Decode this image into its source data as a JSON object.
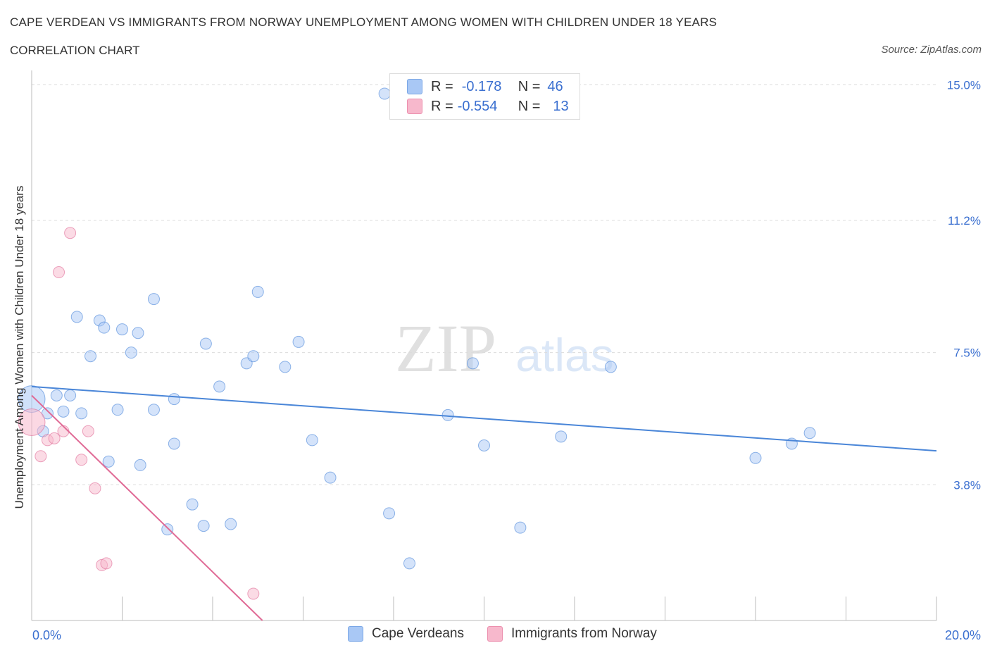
{
  "header": {
    "title": "CAPE VERDEAN VS IMMIGRANTS FROM NORWAY UNEMPLOYMENT AMONG WOMEN WITH CHILDREN UNDER 18 YEARS",
    "subtitle": "CORRELATION CHART",
    "source": "Source: ZipAtlas.com"
  },
  "watermark": {
    "zip": "ZIP",
    "atlas": "atlas"
  },
  "legend": {
    "rows": [
      {
        "r_label": "R =",
        "r_value": "-0.178",
        "n_label": "N =",
        "n_value": "46",
        "color": "#a9c8f5"
      },
      {
        "r_label": "R =",
        "r_value": "-0.554",
        "n_label": "N =",
        "n_value": "13",
        "color": "#f7b8cc"
      }
    ]
  },
  "bottom_legend": {
    "items": [
      {
        "label": "Cape Verdeans",
        "color": "#a9c8f5"
      },
      {
        "label": "Immigrants from Norway",
        "color": "#f7b8cc"
      }
    ]
  },
  "chart_data": {
    "type": "scatter",
    "title": "CAPE VERDEAN VS IMMIGRANTS FROM NORWAY UNEMPLOYMENT AMONG WOMEN WITH CHILDREN UNDER 18 YEARS",
    "ylabel": "Unemployment Among Women with Children Under 18 years",
    "xlabel": "",
    "xlim": [
      0,
      20
    ],
    "ylim": [
      0,
      15.4
    ],
    "x_ticks": [
      "0.0%",
      "20.0%"
    ],
    "y_ticks": [
      {
        "value": 3.8,
        "label": "3.8%"
      },
      {
        "value": 7.5,
        "label": "7.5%"
      },
      {
        "value": 11.2,
        "label": "11.2%"
      },
      {
        "value": 15.0,
        "label": "15.0%"
      }
    ],
    "grid": "horizontal dashed",
    "series": [
      {
        "name": "Cape Verdeans",
        "color": "#4a86d8",
        "fill": "#a9c8f5",
        "points": [
          [
            0.0,
            6.2
          ],
          [
            0.25,
            5.3
          ],
          [
            0.35,
            5.8
          ],
          [
            0.55,
            6.3
          ],
          [
            0.7,
            5.85
          ],
          [
            0.85,
            6.3
          ],
          [
            1.0,
            8.5
          ],
          [
            1.1,
            5.8
          ],
          [
            1.3,
            7.4
          ],
          [
            1.5,
            8.4
          ],
          [
            1.6,
            8.2
          ],
          [
            1.7,
            4.45
          ],
          [
            1.9,
            5.9
          ],
          [
            2.0,
            8.15
          ],
          [
            2.2,
            7.5
          ],
          [
            2.35,
            8.05
          ],
          [
            2.4,
            4.35
          ],
          [
            2.7,
            5.9
          ],
          [
            2.7,
            9.0
          ],
          [
            3.0,
            2.55
          ],
          [
            3.15,
            6.2
          ],
          [
            3.15,
            4.95
          ],
          [
            3.55,
            3.25
          ],
          [
            3.8,
            2.65
          ],
          [
            3.85,
            7.75
          ],
          [
            4.15,
            6.55
          ],
          [
            4.4,
            2.7
          ],
          [
            4.75,
            7.2
          ],
          [
            4.9,
            7.4
          ],
          [
            5.0,
            9.2
          ],
          [
            5.6,
            7.1
          ],
          [
            5.9,
            7.8
          ],
          [
            6.2,
            5.05
          ],
          [
            6.6,
            4.0
          ],
          [
            7.8,
            14.75
          ],
          [
            7.9,
            3.0
          ],
          [
            8.35,
            1.6
          ],
          [
            9.2,
            5.75
          ],
          [
            9.75,
            7.2
          ],
          [
            10.0,
            4.9
          ],
          [
            10.8,
            2.6
          ],
          [
            11.7,
            5.15
          ],
          [
            12.8,
            7.1
          ],
          [
            16.0,
            4.55
          ],
          [
            16.8,
            4.95
          ],
          [
            17.2,
            5.25
          ]
        ],
        "trend": {
          "x": [
            0,
            20
          ],
          "y": [
            6.55,
            4.75
          ]
        }
      },
      {
        "name": "Immigrants from Norway",
        "color": "#e06b96",
        "fill": "#f7b8cc",
        "points": [
          [
            0.0,
            5.55
          ],
          [
            0.2,
            4.6
          ],
          [
            0.35,
            5.05
          ],
          [
            0.5,
            5.1
          ],
          [
            0.6,
            9.75
          ],
          [
            0.7,
            5.3
          ],
          [
            0.85,
            10.85
          ],
          [
            1.1,
            4.5
          ],
          [
            1.25,
            5.3
          ],
          [
            1.4,
            3.7
          ],
          [
            1.55,
            1.55
          ],
          [
            1.65,
            1.6
          ],
          [
            4.9,
            0.75
          ]
        ],
        "trend": {
          "x": [
            0,
            5.1
          ],
          "y": [
            6.3,
            0.0
          ]
        }
      }
    ]
  }
}
